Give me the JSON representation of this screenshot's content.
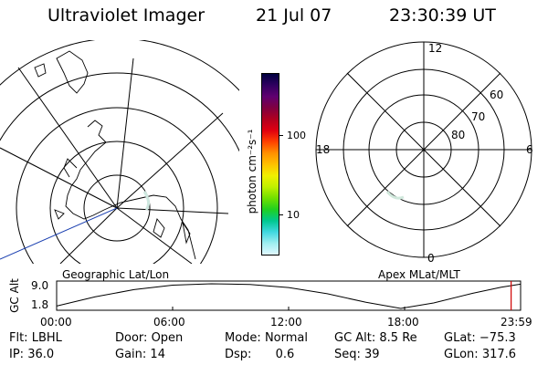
{
  "header": {
    "instrument": "Ultraviolet Imager",
    "date": "21 Jul 07",
    "time": "23:30:39 UT"
  },
  "panels": {
    "geographic_caption": "Geographic Lat/Lon",
    "apex_caption": "Apex MLat/MLT",
    "apex_mlt_labels": [
      "12",
      "18",
      "6",
      "0"
    ],
    "apex_mlat_labels": [
      "60",
      "70",
      "80"
    ]
  },
  "colorbar": {
    "unit_label": "photon cm⁻²s⁻¹",
    "tick_labels": [
      "100",
      "10"
    ],
    "colors": [
      "#000040",
      "#300060",
      "#600070",
      "#800040",
      "#b00020",
      "#e00010",
      "#ff4000",
      "#ff9000",
      "#ffc000",
      "#f0f000",
      "#c0f000",
      "#70e000",
      "#20d020",
      "#00c890",
      "#40d8e0",
      "#a0eef0",
      "#e0f8ff"
    ]
  },
  "orbit_plot": {
    "ylabel": "GC Alt",
    "ytick_labels": [
      "9.0",
      "1.8"
    ],
    "xtick_labels": [
      "00:00",
      "06:00",
      "12:00",
      "18:00",
      "23:59"
    ],
    "ymin": 1.8,
    "ymax": 9.0,
    "xmax_hours": 24,
    "current_time_hours": 23.51,
    "altitude_curve": [
      {
        "t": 0,
        "alt": 2.5
      },
      {
        "t": 2,
        "alt": 5.2
      },
      {
        "t": 4,
        "alt": 7.3
      },
      {
        "t": 6,
        "alt": 8.6
      },
      {
        "t": 8,
        "alt": 9.0
      },
      {
        "t": 10,
        "alt": 8.8
      },
      {
        "t": 12,
        "alt": 7.9
      },
      {
        "t": 14,
        "alt": 6.1
      },
      {
        "t": 16,
        "alt": 3.6
      },
      {
        "t": 17.8,
        "alt": 1.8
      },
      {
        "t": 19.5,
        "alt": 3.4
      },
      {
        "t": 21.5,
        "alt": 6.2
      },
      {
        "t": 23,
        "alt": 8.0
      },
      {
        "t": 24,
        "alt": 8.9
      }
    ]
  },
  "status": {
    "filter_label": "Flt:",
    "filter": "LBHL",
    "door_label": "Door:",
    "door": "Open",
    "mode_label": "Mode:",
    "mode": "Normal",
    "gcalt_label": "GC Alt:",
    "gcalt": "8.5 Re",
    "glat_label": "GLat:",
    "glat": "−75.3",
    "ip_label": "IP:",
    "ip": "36.0",
    "gain_label": "Gain:",
    "gain": "14",
    "dsp_label": "Dsp:",
    "dsp": "0.6",
    "seq_label": "Seq:",
    "seq": "39",
    "glon_label": "GLon:",
    "glon": "317.6"
  }
}
